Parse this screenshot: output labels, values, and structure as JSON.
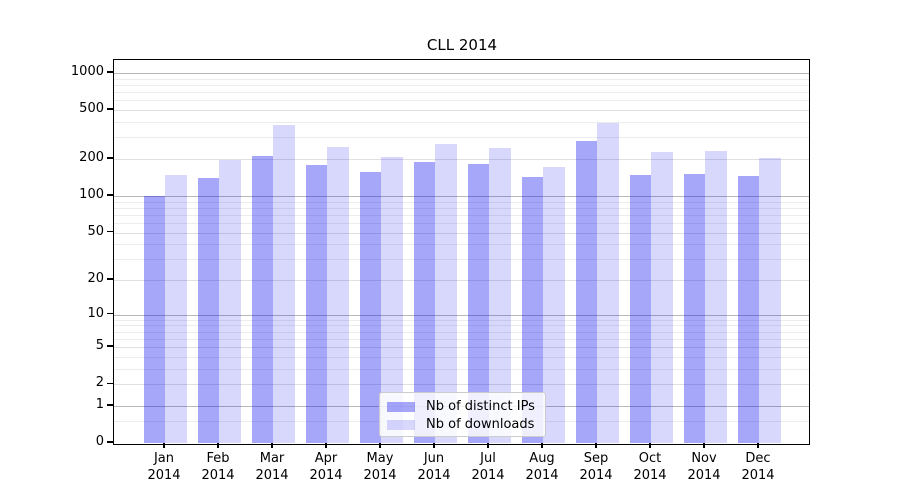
{
  "chart_data": {
    "type": "bar",
    "title": "CLL 2014",
    "categories": [
      "Jan 2014",
      "Feb 2014",
      "Mar 2014",
      "Apr 2014",
      "May 2014",
      "Jun 2014",
      "Jul 2014",
      "Aug 2014",
      "Sep 2014",
      "Oct 2014",
      "Nov 2014",
      "Dec 2014"
    ],
    "series": [
      {
        "name": "Nb of distinct IPs",
        "fill": "rgba(10,10,238,0.36)",
        "apparent_color": "#a5a5f8",
        "values": [
          100,
          140,
          213,
          178,
          158,
          189,
          183,
          144,
          281,
          147,
          152,
          146
        ]
      },
      {
        "name": "Nb of downloads",
        "fill": "rgba(10,10,238,0.16)",
        "apparent_color": "#d8d8fb",
        "values": [
          148,
          195,
          378,
          249,
          208,
          264,
          248,
          173,
          393,
          227,
          234,
          204
        ]
      }
    ],
    "y_scale": "log10(value+1)",
    "y_ticks": [
      1000,
      500,
      200,
      100,
      50,
      20,
      10,
      5,
      2,
      1,
      0
    ],
    "ylim": [
      0,
      1300
    ],
    "grid": true,
    "legend_position": "lower center"
  },
  "colors": {
    "grid_major": "#b8b8b8",
    "grid_mid": "#e0e0e0",
    "grid_minor": "#ececec",
    "axis": "#000000",
    "text": "#000000"
  }
}
